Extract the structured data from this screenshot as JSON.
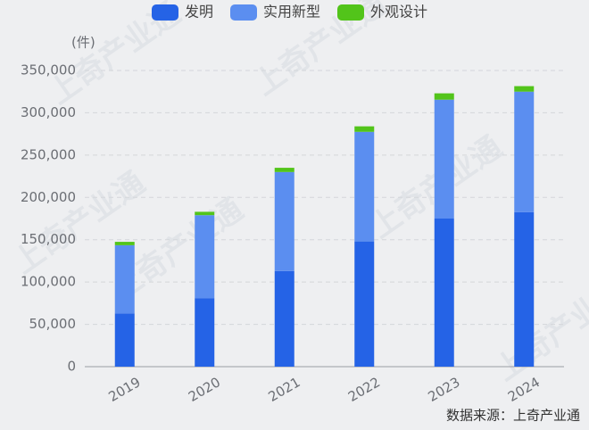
{
  "chart_data": {
    "type": "stacked_bar",
    "y_label": "(件)",
    "source": "数据来源：上奇产业通",
    "watermark": "上奇产业通",
    "categories": [
      "2019",
      "2020",
      "2021",
      "2022",
      "2023",
      "2024"
    ],
    "series": [
      {
        "name": "发明",
        "color": "#2563e6",
        "values": [
          63000,
          81000,
          113000,
          148000,
          175000,
          182500
        ]
      },
      {
        "name": "实用新型",
        "color": "#5b8ef0",
        "values": [
          80500,
          98000,
          117000,
          129500,
          140500,
          142500
        ]
      },
      {
        "name": "外观设计",
        "color": "#52c41a",
        "values": [
          4000,
          4000,
          5000,
          6500,
          7500,
          6500
        ]
      }
    ],
    "ylim": [
      0,
      350000
    ],
    "yticks": [
      0,
      {
        "value": 50000,
        "label": "50,000"
      },
      {
        "value": 100000,
        "label": "100,000"
      },
      {
        "value": 150000,
        "label": "150,000"
      },
      {
        "value": 200000,
        "label": "200,000"
      },
      {
        "value": 250000,
        "label": "250,000"
      },
      {
        "value": 300000,
        "label": "300,000"
      },
      {
        "value": 350000,
        "label": "350,000"
      }
    ],
    "grid": true
  }
}
